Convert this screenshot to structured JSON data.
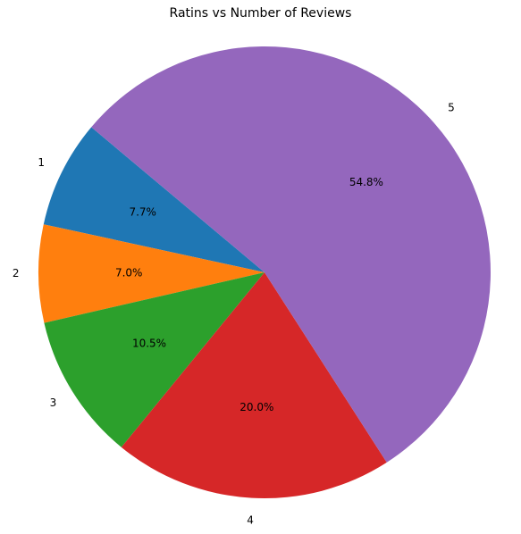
{
  "chart_data": {
    "type": "pie",
    "title": "Ratins vs Number of Reviews",
    "categories": [
      "1",
      "2",
      "3",
      "4",
      "5"
    ],
    "values": [
      7.7,
      7.0,
      10.5,
      20.0,
      54.8
    ],
    "value_labels": [
      "7.7%",
      "7.0%",
      "10.5%",
      "20.0%",
      "54.8%"
    ],
    "colors": [
      "#1f77b4",
      "#ff7f0e",
      "#2ca02c",
      "#d62728",
      "#9467bd"
    ],
    "start_angle_deg": 140,
    "direction": "counterclockwise"
  }
}
